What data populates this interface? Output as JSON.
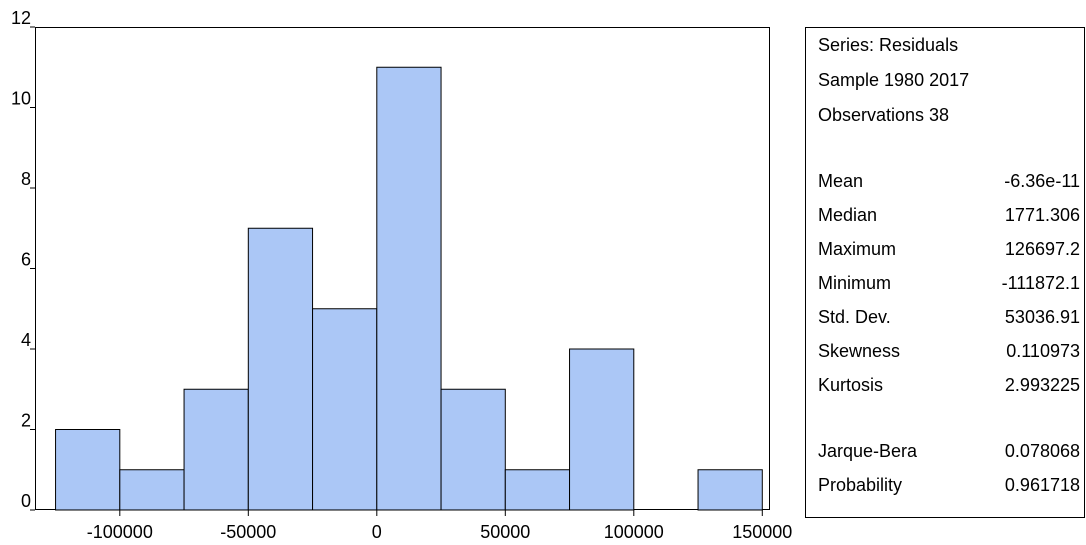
{
  "chart_data": {
    "type": "histogram",
    "bins": [
      -125000,
      -100000,
      -75000,
      -50000,
      -25000,
      0,
      25000,
      50000,
      75000,
      100000,
      125000,
      150000
    ],
    "values": [
      2,
      1,
      3,
      7,
      5,
      11,
      3,
      1,
      4,
      0,
      1
    ],
    "color": "#a6c4f6",
    "xlim": [
      -133000,
      153000
    ],
    "xticks": [
      -100000,
      -50000,
      0,
      50000,
      100000,
      150000
    ],
    "ylim": [
      0,
      12
    ],
    "yticks": [
      0,
      2,
      4,
      6,
      8,
      10,
      12
    ]
  },
  "stats": {
    "header": [
      "Series: Residuals",
      "Sample 1980 2017",
      "Observations 38"
    ],
    "groups": [
      [
        {
          "label": "Mean",
          "value": "-6.36e-11"
        },
        {
          "label": "Median",
          "value": "1771.306"
        },
        {
          "label": "Maximum",
          "value": "126697.2"
        },
        {
          "label": "Minimum",
          "value": "-111872.1"
        },
        {
          "label": "Std. Dev.",
          "value": "53036.91"
        },
        {
          "label": "Skewness",
          "value": "0.110973"
        },
        {
          "label": "Kurtosis",
          "value": "2.993225"
        }
      ],
      [
        {
          "label": "Jarque-Bera",
          "value": "0.078068"
        },
        {
          "label": "Probability",
          "value": "0.961718"
        }
      ]
    ]
  }
}
